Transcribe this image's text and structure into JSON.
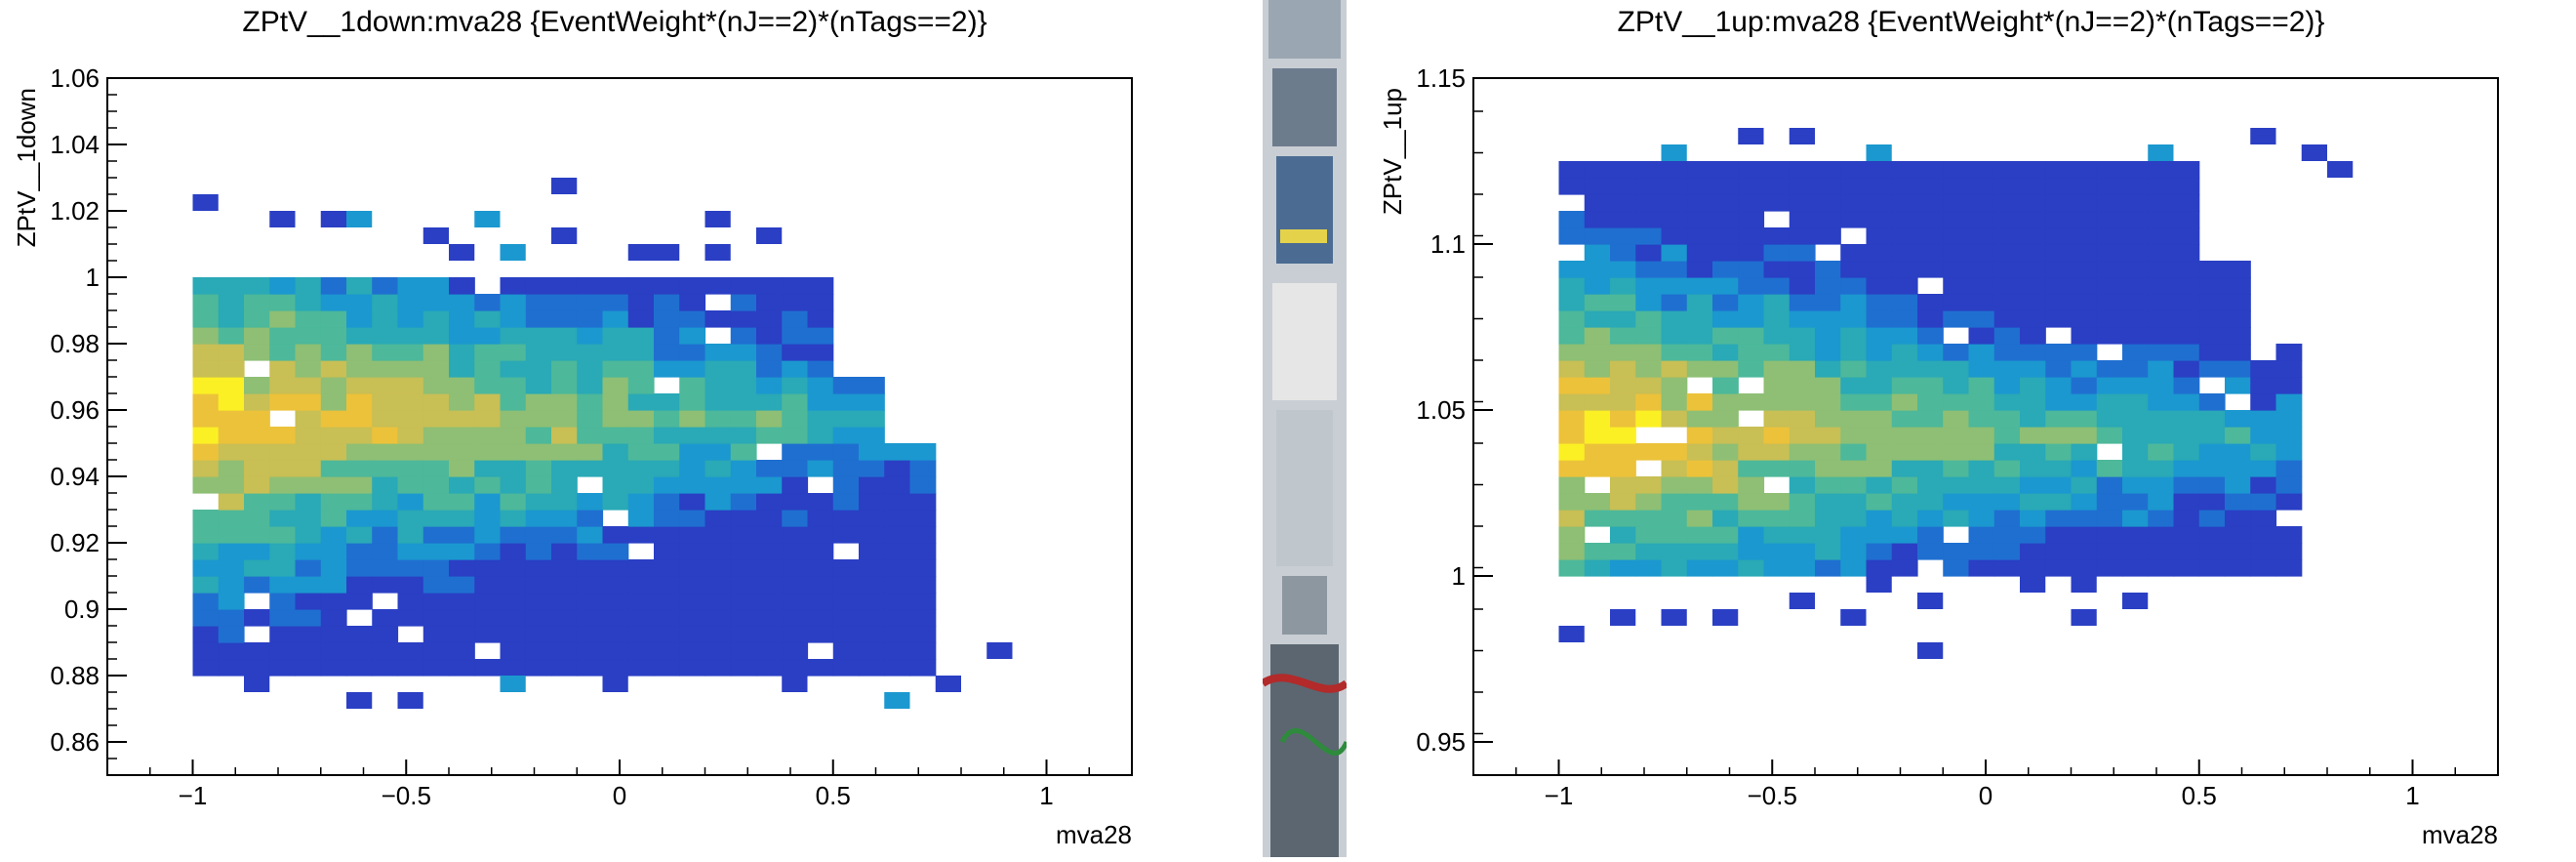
{
  "colors": {
    "palette": [
      "#2a3fc4",
      "#1f6fd0",
      "#1b98cf",
      "#2aa9b6",
      "#4db89a",
      "#8ebf74",
      "#c8bf55",
      "#ecc23a",
      "#fbf024"
    ],
    "strip_bg": "#d9dde2"
  },
  "chart_data": [
    {
      "type": "heatmap",
      "title": "ZPtV__1down:mva28 {EventWeight*(nJ==2)*(nTags==2)}",
      "xlabel": "mva28",
      "ylabel": "ZPtV__1down",
      "xlim": [
        -1.2,
        1.2
      ],
      "ylim": [
        0.85,
        1.06
      ],
      "xticks": [
        "−1",
        "−0.5",
        "0",
        "0.5",
        "1"
      ],
      "xtick_values": [
        -1,
        -0.5,
        0,
        0.5,
        1
      ],
      "yticks": [
        "0.86",
        "0.88",
        "0.9",
        "0.92",
        "0.94",
        "0.96",
        "0.98",
        "1",
        "1.02",
        "1.04",
        "1.06"
      ],
      "ytick_values": [
        0.86,
        0.88,
        0.9,
        0.92,
        0.94,
        0.96,
        0.98,
        1.0,
        1.02,
        1.04,
        1.06
      ],
      "bin_width_x": 0.06,
      "bin_width_y": 0.005,
      "x_min_bin": -1.0,
      "y_core": [
        0.88,
        1.0
      ],
      "y_peak": 0.955,
      "x_edge_low": [
        0.5,
        0.62,
        0.74
      ],
      "outliers": [
        [
          -1.0,
          1.02
        ],
        [
          -0.82,
          1.015
        ],
        [
          -0.7,
          1.015
        ],
        [
          -0.64,
          1.015
        ],
        [
          -0.46,
          1.01
        ],
        [
          -0.34,
          1.015
        ],
        [
          -0.16,
          1.025
        ],
        [
          -0.16,
          1.01
        ],
        [
          0.2,
          1.015
        ],
        [
          0.32,
          1.01
        ],
        [
          -0.4,
          1.005
        ],
        [
          -0.28,
          1.005
        ],
        [
          0.08,
          1.005
        ],
        [
          0.2,
          1.005
        ],
        [
          0.02,
          1.005
        ],
        [
          -0.88,
          0.875
        ],
        [
          -0.64,
          0.87
        ],
        [
          -0.52,
          0.87
        ],
        [
          -0.28,
          0.875
        ],
        [
          -0.04,
          0.875
        ],
        [
          0.38,
          0.875
        ],
        [
          0.62,
          0.87
        ],
        [
          0.74,
          0.875
        ],
        [
          0.86,
          0.885
        ]
      ]
    },
    {
      "type": "heatmap",
      "title": "ZPtV__1up:mva28 {EventWeight*(nJ==2)*(nTags==2)}",
      "xlabel": "mva28",
      "ylabel": "ZPtV__1up",
      "xlim": [
        -1.2,
        1.2
      ],
      "ylim": [
        0.94,
        1.15
      ],
      "xticks": [
        "−1",
        "−0.5",
        "0",
        "0.5",
        "1"
      ],
      "xtick_values": [
        -1,
        -0.5,
        0,
        0.5,
        1
      ],
      "yticks": [
        "0.95",
        "1",
        "1.05",
        "1.1",
        "1.15"
      ],
      "ytick_values": [
        0.95,
        1.0,
        1.05,
        1.1,
        1.15
      ],
      "bin_width_x": 0.06,
      "bin_width_y": 0.005,
      "x_min_bin": -1.0,
      "y_core": [
        1.0,
        1.12
      ],
      "y_peak": 1.04,
      "x_edge_low": [
        0.5,
        0.62,
        0.74
      ],
      "outliers": [
        [
          -0.76,
          1.125
        ],
        [
          -0.58,
          1.13
        ],
        [
          -0.46,
          1.13
        ],
        [
          -0.28,
          1.125
        ],
        [
          0.38,
          1.125
        ],
        [
          0.62,
          1.13
        ],
        [
          0.74,
          1.125
        ],
        [
          0.8,
          1.12
        ],
        [
          -1.0,
          0.98
        ],
        [
          -0.88,
          0.985
        ],
        [
          -0.76,
          0.985
        ],
        [
          -0.64,
          0.985
        ],
        [
          -0.46,
          0.99
        ],
        [
          -0.34,
          0.985
        ],
        [
          -0.16,
          0.99
        ],
        [
          -0.16,
          0.975
        ],
        [
          0.2,
          0.985
        ],
        [
          0.32,
          0.99
        ],
        [
          -0.28,
          0.995
        ],
        [
          0.08,
          0.995
        ],
        [
          0.2,
          0.995
        ]
      ]
    }
  ]
}
